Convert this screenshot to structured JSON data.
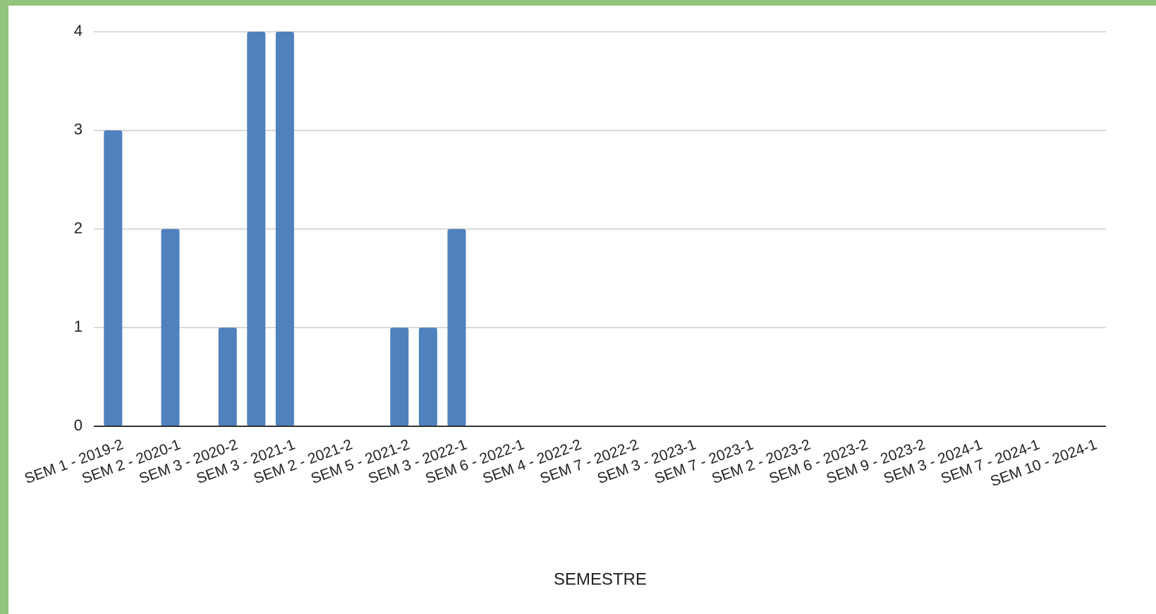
{
  "chart_data": {
    "type": "bar",
    "x_label": "SEMESTRE",
    "categories": [
      "SEM 1 - 2019-2",
      null,
      "SEM 2 - 2020-1",
      null,
      "SEM 3 - 2020-2",
      null,
      "SEM 3 - 2021-1",
      null,
      "SEM 2 - 2021-2",
      null,
      "SEM 5 - 2021-2",
      null,
      "SEM 3 - 2022-1",
      null,
      "SEM 6 - 2022-1",
      null,
      "SEM 4 - 2022-2",
      null,
      "SEM 7 - 2022-2",
      null,
      "SEM 3 - 2023-1",
      null,
      "SEM 7 - 2023-1",
      null,
      "SEM 2 - 2023-2",
      null,
      "SEM 6 - 2023-2",
      null,
      "SEM 9 - 2023-2",
      null,
      "SEM 3 - 2024-1",
      null,
      "SEM 7 - 2024-1",
      null,
      "SEM 10 - 2024-1"
    ],
    "values": [
      3,
      0,
      2,
      0,
      1,
      4,
      4,
      0,
      0,
      0,
      1,
      1,
      2,
      0,
      0,
      0,
      0,
      0,
      0,
      0,
      0,
      0,
      0,
      0,
      0,
      0,
      0,
      0,
      0,
      0,
      0,
      0,
      0,
      0,
      0
    ],
    "color": "#4e81bd",
    "ylim": [
      0,
      4
    ],
    "yticks": [
      0,
      1,
      2,
      3,
      4
    ],
    "grid": true
  }
}
